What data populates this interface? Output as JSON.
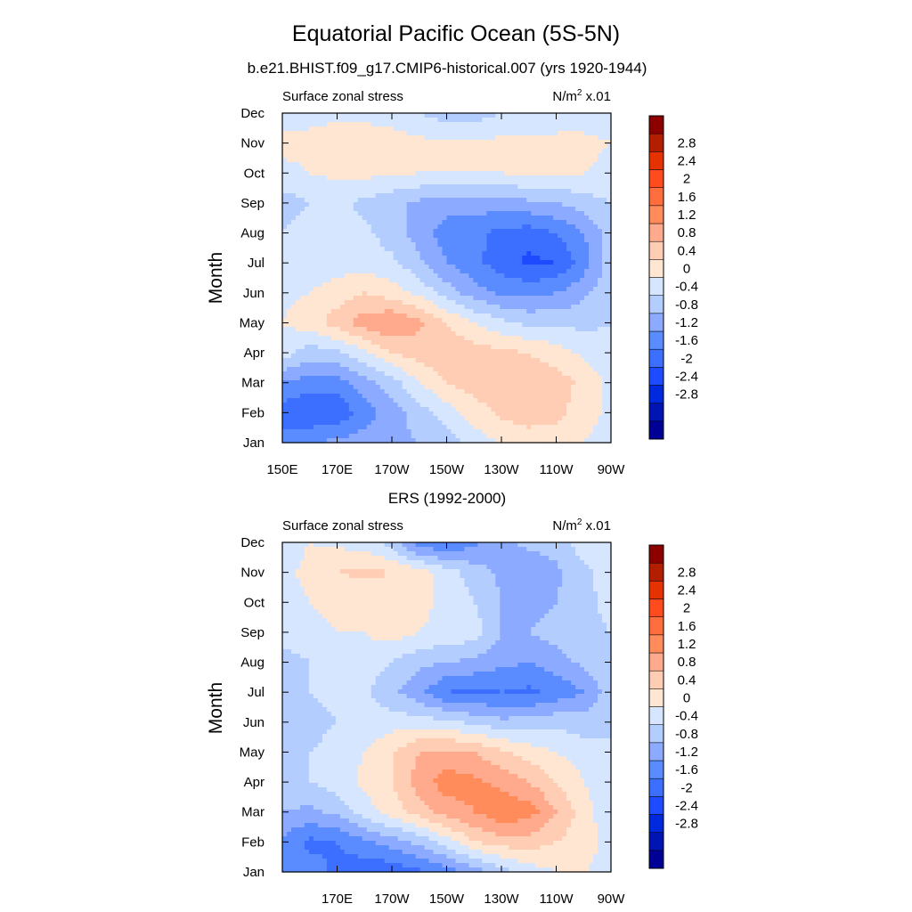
{
  "figure": {
    "title": "Equatorial Pacific Ocean (5S-5N)"
  },
  "colorbar": {
    "colors": [
      "#000096",
      "#0014b4",
      "#0028dc",
      "#1e4bff",
      "#3c6eff",
      "#5a8cff",
      "#8caaff",
      "#b4cdff",
      "#d7e6ff",
      "#ffe6d2",
      "#ffcdb4",
      "#ffaa8c",
      "#ff8c5a",
      "#ff6e3c",
      "#ff4b1e",
      "#e63200",
      "#b41e00",
      "#8c0000"
    ],
    "labels": [
      "-2.8",
      "-2.4",
      "-2",
      "-1.6",
      "-1.2",
      "-0.8",
      "-0.4",
      "0",
      "0.4",
      "0.8",
      "1.2",
      "1.6",
      "2",
      "2.4",
      "2.8"
    ]
  },
  "chart_data": [
    {
      "type": "heatmap",
      "title": "b.e21.BHIST.f09_g17.CMIP6-historical.007 (yrs 1920-1944)",
      "left_label": "Surface zonal stress",
      "units_prefix": "N/m",
      "units_exp": "2",
      "units_suffix": " x.01",
      "ylabel": "Month",
      "x_tick_labels": [
        "150E",
        "170E",
        "170W",
        "150W",
        "130W",
        "110W",
        "90W"
      ],
      "x_tick_values": [
        150,
        170,
        190,
        210,
        230,
        250,
        270
      ],
      "xlim": [
        150,
        270
      ],
      "y_tick_labels": [
        "Jan",
        "Feb",
        "Mar",
        "Apr",
        "May",
        "Jun",
        "Jul",
        "Aug",
        "Sep",
        "Oct",
        "Nov",
        "Dec"
      ],
      "ylim": [
        1,
        12
      ],
      "levels": [
        -2.8,
        -2.4,
        -2,
        -1.6,
        -1.2,
        -0.8,
        -0.4,
        0,
        0.4,
        0.8,
        1.2,
        1.6,
        2,
        2.4,
        2.8
      ],
      "longitudes": [
        150,
        160,
        170,
        180,
        190,
        200,
        210,
        220,
        230,
        240,
        250,
        260,
        270
      ],
      "months": [
        "Jan",
        "Feb",
        "Mar",
        "Apr",
        "May",
        "Jun",
        "Jul",
        "Aug",
        "Sep",
        "Oct",
        "Nov",
        "Dec"
      ],
      "values": [
        [
          -1.0,
          -0.8,
          -0.7,
          -0.6,
          -0.5,
          -0.4,
          -0.2,
          0.2,
          0.4,
          0.6,
          0.6,
          0.4,
          0.2
        ],
        [
          -1.4,
          -1.6,
          -1.5,
          -1.0,
          -0.6,
          -0.2,
          0.2,
          0.6,
          0.9,
          1.0,
          0.9,
          0.6,
          0.3
        ],
        [
          -0.8,
          -1.0,
          -1.0,
          -0.6,
          -0.2,
          0.4,
          0.8,
          1.0,
          1.1,
          1.1,
          1.0,
          0.7,
          0.3
        ],
        [
          0.2,
          -0.2,
          -0.1,
          0.3,
          0.8,
          1.0,
          1.1,
          1.0,
          0.9,
          0.8,
          0.6,
          0.3,
          0.1
        ],
        [
          0.4,
          0.6,
          1.0,
          1.4,
          1.6,
          1.3,
          0.8,
          0.4,
          0.1,
          -0.1,
          -0.1,
          -0.1,
          0.0
        ],
        [
          0.3,
          0.4,
          0.6,
          0.8,
          0.6,
          0.3,
          -0.2,
          -0.6,
          -0.9,
          -0.9,
          -0.8,
          -0.5,
          -0.1
        ],
        [
          0.2,
          0.2,
          0.2,
          0.2,
          0.1,
          -0.3,
          -0.8,
          -1.1,
          -1.4,
          -1.7,
          -1.6,
          -1.0,
          -0.2
        ],
        [
          0.0,
          0.2,
          0.2,
          0.1,
          -0.2,
          -0.6,
          -1.0,
          -1.1,
          -1.3,
          -1.4,
          -1.2,
          -0.8,
          -0.2
        ],
        [
          -0.2,
          0.0,
          0.1,
          -0.1,
          -0.3,
          -0.5,
          -0.6,
          -0.6,
          -0.6,
          -0.5,
          -0.4,
          -0.2,
          0.0
        ],
        [
          0.3,
          0.4,
          0.5,
          0.5,
          0.5,
          0.4,
          0.4,
          0.4,
          0.4,
          0.5,
          0.5,
          0.4,
          0.3
        ],
        [
          0.5,
          0.5,
          0.6,
          0.6,
          0.6,
          0.5,
          0.5,
          0.5,
          0.5,
          0.5,
          0.5,
          0.5,
          0.4
        ],
        [
          0.2,
          0.3,
          0.3,
          0.3,
          0.2,
          0.0,
          -0.2,
          -0.2,
          0.0,
          0.1,
          0.2,
          0.2,
          0.2
        ]
      ]
    },
    {
      "type": "heatmap",
      "title": "ERS (1992-2000)",
      "left_label": "Surface zonal stress",
      "units_prefix": "N/m",
      "units_exp": "2",
      "units_suffix": " x.01",
      "ylabel": "Month",
      "x_tick_labels": [
        "170E",
        "170W",
        "150W",
        "130W",
        "110W",
        "90W"
      ],
      "x_tick_values": [
        170,
        190,
        210,
        230,
        250,
        270
      ],
      "xlim": [
        150,
        270
      ],
      "y_tick_labels": [
        "Jan",
        "Feb",
        "Mar",
        "Apr",
        "May",
        "Jun",
        "Jul",
        "Aug",
        "Sep",
        "Oct",
        "Nov",
        "Dec"
      ],
      "ylim": [
        1,
        12
      ],
      "levels": [
        -2.8,
        -2.4,
        -2,
        -1.6,
        -1.2,
        -0.8,
        -0.4,
        0,
        0.4,
        0.8,
        1.2,
        1.6,
        2,
        2.4,
        2.8
      ],
      "longitudes": [
        150,
        160,
        170,
        180,
        190,
        200,
        210,
        220,
        230,
        240,
        250,
        260,
        270
      ],
      "months": [
        "Jan",
        "Feb",
        "Mar",
        "Apr",
        "May",
        "Jun",
        "Jul",
        "Aug",
        "Sep",
        "Oct",
        "Nov",
        "Dec"
      ],
      "values": [
        [
          -0.8,
          -1.0,
          -1.3,
          -1.5,
          -1.5,
          -1.3,
          -1.0,
          -0.6,
          -0.2,
          0.2,
          0.4,
          0.4,
          0.3
        ],
        [
          -0.9,
          -1.3,
          -1.2,
          -0.9,
          -0.6,
          -0.3,
          0.2,
          0.8,
          1.0,
          1.0,
          0.8,
          0.6,
          0.2
        ],
        [
          -0.4,
          -0.5,
          -0.3,
          0.2,
          0.6,
          1.0,
          1.4,
          1.6,
          1.9,
          1.8,
          1.2,
          0.6,
          0.1
        ],
        [
          -0.2,
          0.0,
          0.2,
          0.5,
          0.8,
          1.4,
          1.8,
          1.7,
          1.5,
          1.2,
          0.8,
          0.4,
          0.1
        ],
        [
          -0.2,
          0.0,
          0.2,
          0.4,
          0.8,
          1.2,
          1.3,
          1.2,
          0.9,
          0.6,
          0.4,
          0.2,
          0.0
        ],
        [
          -0.4,
          -0.2,
          0.0,
          0.1,
          0.2,
          0.2,
          0.1,
          -0.1,
          -0.3,
          -0.2,
          -0.1,
          -0.2,
          0.0
        ],
        [
          -0.2,
          0.0,
          0.2,
          0.1,
          -0.3,
          -0.7,
          -1.2,
          -1.3,
          -1.2,
          -1.3,
          -1.1,
          -0.8,
          -0.2
        ],
        [
          -0.2,
          0.0,
          0.2,
          0.2,
          0.0,
          -0.3,
          -0.4,
          -0.5,
          -0.7,
          -0.8,
          -0.6,
          -0.3,
          -0.1
        ],
        [
          0.2,
          0.3,
          0.4,
          0.4,
          0.6,
          0.4,
          0.3,
          0.2,
          -0.4,
          -0.4,
          -0.2,
          -0.1,
          0.0
        ],
        [
          0.2,
          0.4,
          0.5,
          0.4,
          0.6,
          0.5,
          0.3,
          0.0,
          -0.4,
          -0.6,
          -0.4,
          -0.1,
          0.1
        ],
        [
          0.3,
          0.5,
          0.8,
          0.9,
          0.8,
          0.6,
          0.2,
          -0.2,
          -0.5,
          -0.7,
          -0.5,
          -0.1,
          0.2
        ],
        [
          0.2,
          0.4,
          0.3,
          0.2,
          -0.2,
          -1.1,
          -1.2,
          -0.9,
          -0.5,
          -0.3,
          -0.2,
          0.2,
          0.3
        ]
      ]
    }
  ]
}
